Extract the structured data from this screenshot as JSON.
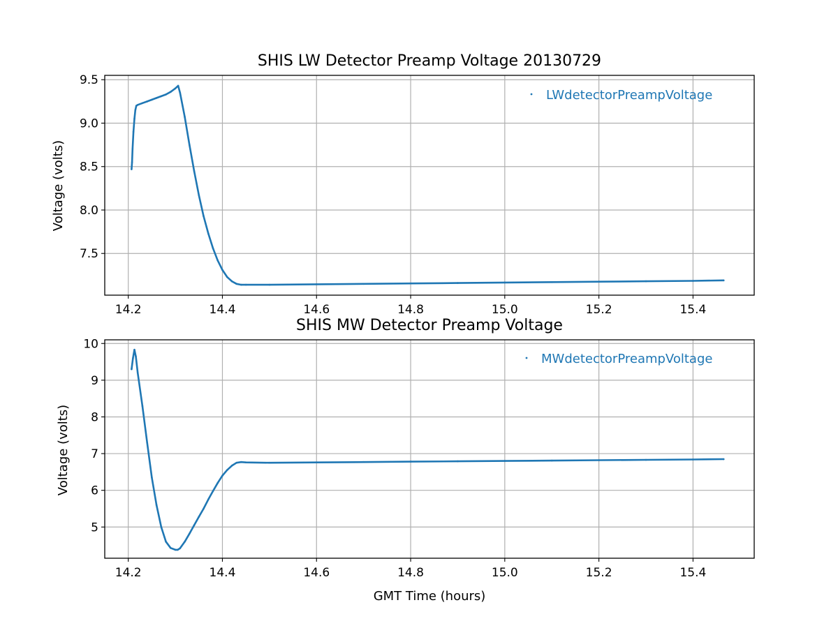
{
  "chart_data": [
    {
      "type": "scatter",
      "title": "SHIS LW Detector Preamp Voltage 20130729",
      "xlabel": "",
      "ylabel": "Voltage (volts)",
      "xlim": [
        14.15,
        15.53
      ],
      "ylim": [
        7.02,
        9.55
      ],
      "xticks": [
        "14.2",
        "14.4",
        "14.6",
        "14.8",
        "15.0",
        "15.2",
        "15.4"
      ],
      "yticks": [
        "7.5",
        "8.0",
        "8.5",
        "9.0",
        "9.5"
      ],
      "grid": true,
      "legend": "top-right",
      "color": "#1f77b4",
      "series": [
        {
          "name": "LWdetectorPreampVoltage",
          "x": [
            14.207,
            14.208,
            14.209,
            14.211,
            14.213,
            14.215,
            14.217,
            14.22,
            14.23,
            14.24,
            14.25,
            14.26,
            14.27,
            14.28,
            14.29,
            14.3,
            14.306,
            14.31,
            14.32,
            14.33,
            14.34,
            14.35,
            14.36,
            14.37,
            14.38,
            14.39,
            14.4,
            14.41,
            14.42,
            14.43,
            14.44,
            14.45,
            14.5,
            14.6,
            14.7,
            14.8,
            14.9,
            15.0,
            15.1,
            15.2,
            15.3,
            15.4,
            15.465
          ],
          "y": [
            8.47,
            8.55,
            8.7,
            8.9,
            9.05,
            9.15,
            9.2,
            9.21,
            9.23,
            9.25,
            9.27,
            9.29,
            9.31,
            9.33,
            9.36,
            9.4,
            9.43,
            9.35,
            9.07,
            8.75,
            8.45,
            8.17,
            7.93,
            7.73,
            7.56,
            7.42,
            7.31,
            7.23,
            7.18,
            7.15,
            7.14,
            7.14,
            7.14,
            7.145,
            7.15,
            7.155,
            7.16,
            7.165,
            7.17,
            7.175,
            7.18,
            7.185,
            7.19
          ]
        }
      ]
    },
    {
      "type": "scatter",
      "title": "SHIS MW Detector Preamp Voltage",
      "xlabel": "GMT Time (hours)",
      "ylabel": "Voltage (volts)",
      "xlim": [
        14.15,
        15.53
      ],
      "ylim": [
        4.15,
        10.1
      ],
      "xticks": [
        "14.2",
        "14.4",
        "14.6",
        "14.8",
        "15.0",
        "15.2",
        "15.4"
      ],
      "yticks": [
        "5",
        "6",
        "7",
        "8",
        "9",
        "10"
      ],
      "grid": true,
      "legend": "top-right",
      "color": "#1f77b4",
      "series": [
        {
          "name": "MWdetectorPreampVoltage",
          "x": [
            14.207,
            14.21,
            14.213,
            14.216,
            14.22,
            14.23,
            14.24,
            14.25,
            14.26,
            14.27,
            14.28,
            14.29,
            14.3,
            14.305,
            14.31,
            14.32,
            14.33,
            14.34,
            14.35,
            14.36,
            14.37,
            14.38,
            14.39,
            14.4,
            14.41,
            14.42,
            14.43,
            14.44,
            14.45,
            14.5,
            14.6,
            14.7,
            14.8,
            14.9,
            15.0,
            15.1,
            15.2,
            15.3,
            15.4,
            15.465
          ],
          "y": [
            9.3,
            9.6,
            9.83,
            9.65,
            9.2,
            8.3,
            7.3,
            6.35,
            5.6,
            5.0,
            4.6,
            4.43,
            4.38,
            4.38,
            4.42,
            4.6,
            4.82,
            5.05,
            5.28,
            5.5,
            5.75,
            5.98,
            6.2,
            6.4,
            6.55,
            6.67,
            6.75,
            6.77,
            6.76,
            6.75,
            6.76,
            6.77,
            6.78,
            6.79,
            6.8,
            6.81,
            6.82,
            6.83,
            6.84,
            6.85
          ]
        }
      ]
    }
  ]
}
